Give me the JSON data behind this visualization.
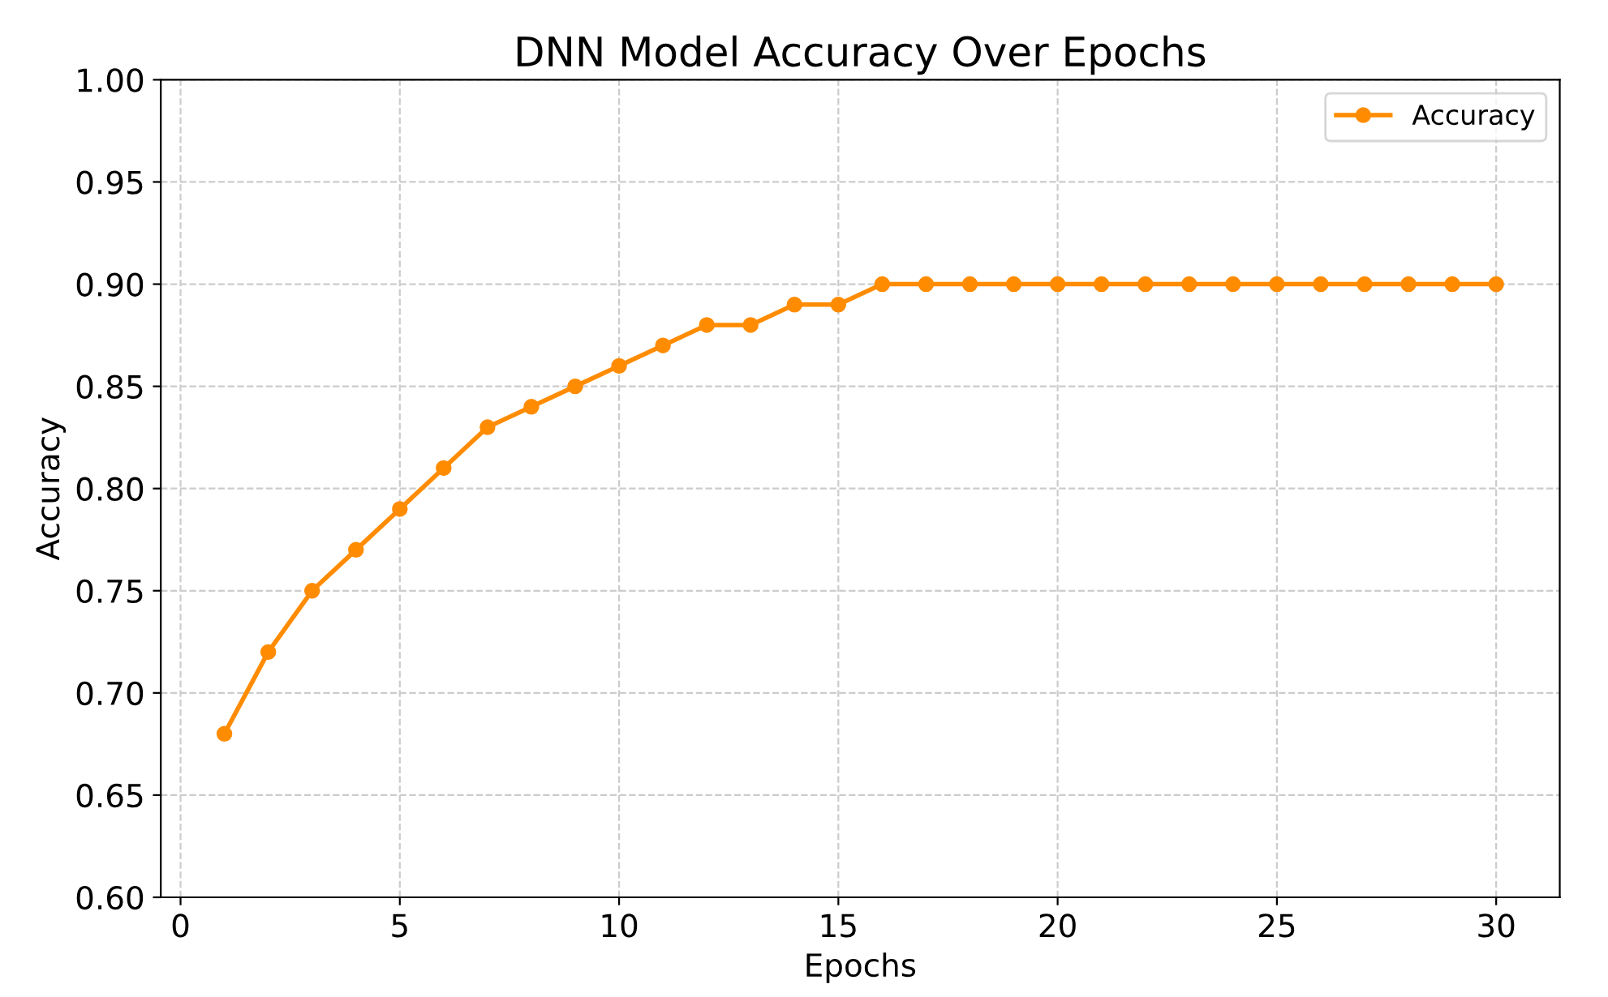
{
  "chart_data": {
    "type": "line",
    "title": "DNN Model Accuracy Over Epochs",
    "xlabel": "Epochs",
    "ylabel": "Accuracy",
    "x": [
      1,
      2,
      3,
      4,
      5,
      6,
      7,
      8,
      9,
      10,
      11,
      12,
      13,
      14,
      15,
      16,
      17,
      18,
      19,
      20,
      21,
      22,
      23,
      24,
      25,
      26,
      27,
      28,
      29,
      30
    ],
    "series": [
      {
        "name": "Accuracy",
        "color": "#ff8c00",
        "values": [
          0.68,
          0.72,
          0.75,
          0.77,
          0.79,
          0.81,
          0.83,
          0.84,
          0.85,
          0.86,
          0.87,
          0.88,
          0.88,
          0.89,
          0.89,
          0.9,
          0.9,
          0.9,
          0.9,
          0.9,
          0.9,
          0.9,
          0.9,
          0.9,
          0.9,
          0.9,
          0.9,
          0.9,
          0.9,
          0.9
        ]
      }
    ],
    "xlim": [
      -0.45,
      31.45
    ],
    "xticks": [
      0,
      5,
      10,
      15,
      20,
      25,
      30
    ],
    "ylim": [
      0.6,
      1.0
    ],
    "yticks": [
      {
        "value": 0.6,
        "label": "0.60"
      },
      {
        "value": 0.65,
        "label": "0.65"
      },
      {
        "value": 0.7,
        "label": "0.70"
      },
      {
        "value": 0.75,
        "label": "0.75"
      },
      {
        "value": 0.8,
        "label": "0.80"
      },
      {
        "value": 0.85,
        "label": "0.85"
      },
      {
        "value": 0.9,
        "label": "0.90"
      },
      {
        "value": 0.95,
        "label": "0.95"
      },
      {
        "value": 1.0,
        "label": "1.00"
      }
    ],
    "grid": true,
    "legend": "top right",
    "marker": "circle",
    "line_style": "solid"
  }
}
